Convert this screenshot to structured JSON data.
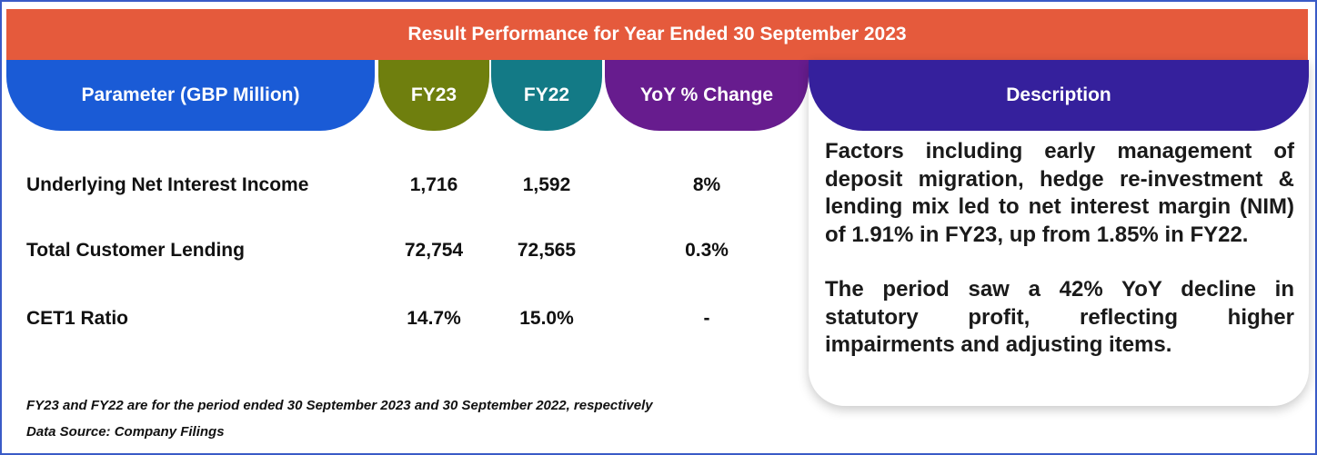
{
  "title": "Result Performance for Year Ended 30 September 2023",
  "colors": {
    "banner": "#e55a3c",
    "param_header": "#1a5bd6",
    "fy23_header": "#6f7f0e",
    "fy22_header": "#137a86",
    "yoy_header": "#671c8e",
    "desc_header": "#35209c",
    "border": "#3a5bc7"
  },
  "headers": {
    "parameter": "Parameter (GBP Million)",
    "fy23": "FY23",
    "fy22": "FY22",
    "yoy": "YoY % Change",
    "description": "Description"
  },
  "rows": [
    {
      "parameter": "Underlying Net Interest Income",
      "fy23": "1,716",
      "fy22": "1,592",
      "yoy": "8%"
    },
    {
      "parameter": "Total Customer Lending",
      "fy23": "72,754",
      "fy22": "72,565",
      "yoy": "0.3%"
    },
    {
      "parameter": "CET1 Ratio",
      "fy23": "14.7%",
      "fy22": "15.0%",
      "yoy": "-"
    }
  ],
  "description": [
    "Factors including early management of deposit migration, hedge re-investment & lending mix led to net interest margin (NIM) of 1.91% in FY23, up from 1.85% in FY22.",
    "The period saw a 42% YoY decline in statutory profit, reflecting higher impairments and adjusting items."
  ],
  "footnotes": {
    "period_note": "FY23 and FY22 are for the period ended 30 September 2023 and 30 September 2022, respectively",
    "source": "Data Source: Company Filings"
  }
}
